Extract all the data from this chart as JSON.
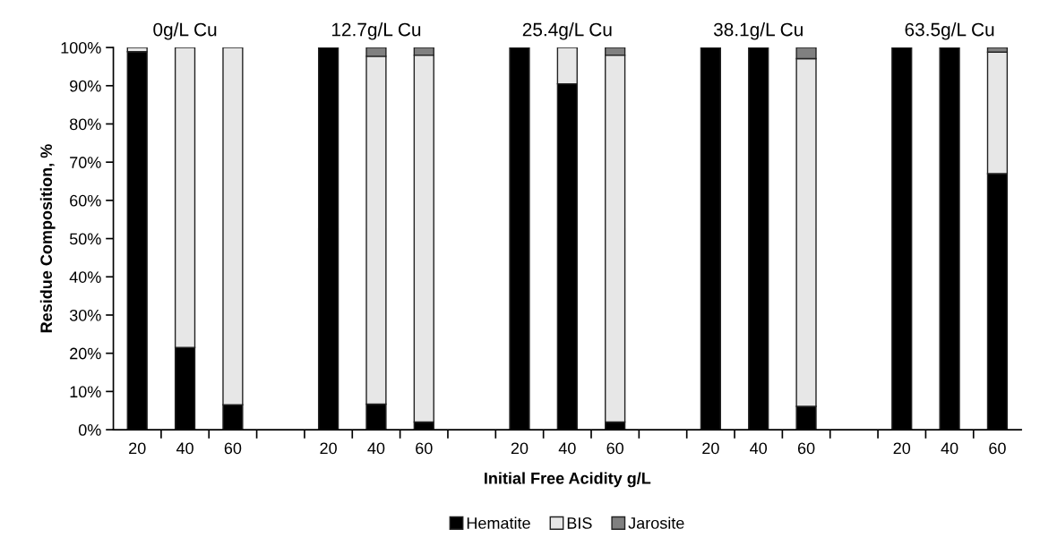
{
  "chart_data": {
    "type": "bar",
    "stacked": true,
    "xlabel": "Initial Free Acidity g/L",
    "ylabel": "Residue Composition, %",
    "categories": [
      "20",
      "40",
      "60",
      null,
      "20",
      "40",
      "60",
      null,
      "20",
      "40",
      "60",
      null,
      "20",
      "40",
      "60",
      null,
      "20",
      "40",
      "60"
    ],
    "series": [
      {
        "name": "Hematite",
        "color": "#000000",
        "values": [
          98.9,
          21.5,
          6.5,
          null,
          100,
          6.7,
          2,
          null,
          100,
          90.5,
          2,
          null,
          100,
          100,
          6.1,
          null,
          100,
          100,
          67
        ]
      },
      {
        "name": "BIS",
        "color": "#e7e7e7",
        "values": [
          1.1,
          78.5,
          93.5,
          null,
          null,
          91,
          96,
          null,
          null,
          9.5,
          96,
          null,
          null,
          null,
          91,
          null,
          null,
          null,
          31.8
        ]
      },
      {
        "name": "Jarosite",
        "color": "#808080",
        "values": [
          null,
          null,
          null,
          null,
          null,
          2.3,
          2,
          null,
          null,
          null,
          2,
          null,
          null,
          null,
          2.9,
          null,
          null,
          null,
          1.2
        ]
      }
    ],
    "ylim": [
      0,
      100
    ],
    "yticks": [
      {
        "value": 0,
        "label": "0%"
      },
      {
        "value": 10,
        "label": "10%"
      },
      {
        "value": 20,
        "label": "20%"
      },
      {
        "value": 30,
        "label": "30%"
      },
      {
        "value": 40,
        "label": "40%"
      },
      {
        "value": 50,
        "label": "50%"
      },
      {
        "value": 60,
        "label": "60%"
      },
      {
        "value": 70,
        "label": "70%"
      },
      {
        "value": 80,
        "label": "80%"
      },
      {
        "value": 90,
        "label": "90%"
      },
      {
        "value": 100,
        "label": "100%"
      }
    ],
    "annotations": [
      "0g/L Cu",
      "12.7g/L Cu",
      "25.4g/L Cu",
      "38.1g/L Cu",
      "63.5g/L Cu"
    ],
    "legend": "bottom",
    "grid": false
  }
}
